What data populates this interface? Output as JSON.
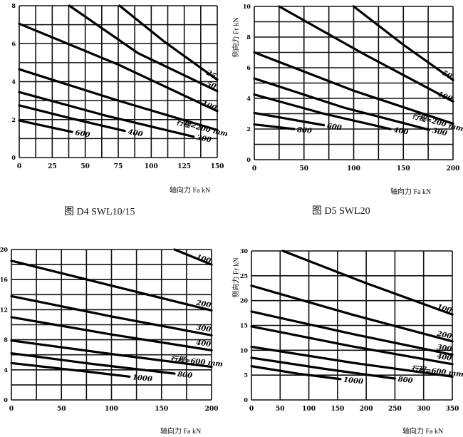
{
  "chart_data": [
    {
      "type": "line",
      "caption": "图 D4   SWL10/15",
      "xlabel": "轴向力 Fa   kN",
      "ylabel": "",
      "xlim": [
        0,
        150
      ],
      "ylim": [
        0,
        8
      ],
      "xticks": [
        0,
        25,
        50,
        75,
        100,
        125,
        150
      ],
      "yticks": [
        0,
        2,
        4,
        6,
        8
      ],
      "grid": {
        "x_step": 12.5,
        "y_step": 1
      },
      "series": [
        {
          "name": "25",
          "points": [
            [
              76,
              8
            ],
            [
              110,
              6.1
            ],
            [
              150,
              4.1
            ]
          ]
        },
        {
          "name": "50",
          "points": [
            [
              38,
              8
            ],
            [
              90,
              5.5
            ],
            [
              150,
              3.5
            ]
          ]
        },
        {
          "name": "100",
          "points": [
            [
              0,
              7.05
            ],
            [
              75,
              4.9
            ],
            [
              150,
              2.45
            ]
          ]
        },
        {
          "name": "行程=200 mm",
          "points": [
            [
              0,
              4.65
            ],
            [
              75,
              3.0
            ],
            [
              150,
              1.45
            ]
          ]
        },
        {
          "name": "300",
          "points": [
            [
              0,
              3.45
            ],
            [
              66,
              2.2
            ],
            [
              132,
              1.1
            ]
          ]
        },
        {
          "name": "400",
          "points": [
            [
              0,
              2.75
            ],
            [
              40,
              2.05
            ],
            [
              80,
              1.4
            ]
          ]
        },
        {
          "name": "600",
          "points": [
            [
              0,
              1.95
            ],
            [
              40,
              1.35
            ]
          ]
        }
      ]
    },
    {
      "type": "line",
      "caption": "图 D5   SWL20",
      "xlabel": "轴向力 Fa   kN",
      "ylabel": "侧向力 Fr   kN",
      "xlim": [
        0,
        200
      ],
      "ylim": [
        0,
        10
      ],
      "xticks": [
        0,
        50,
        100,
        150,
        200
      ],
      "yticks": [
        0,
        2,
        4,
        6,
        8,
        10
      ],
      "grid": {
        "x_step": 25,
        "y_step": 1
      },
      "series": [
        {
          "name": "50",
          "points": [
            [
              100,
              10
            ],
            [
              150,
              7.5
            ],
            [
              200,
              5.2
            ]
          ]
        },
        {
          "name": "100",
          "points": [
            [
              25,
              10
            ],
            [
              110,
              6.9
            ],
            [
              200,
              3.8
            ]
          ]
        },
        {
          "name": "行程=200 mm",
          "points": [
            [
              0,
              7
            ],
            [
              100,
              4.5
            ],
            [
              200,
              2.35
            ]
          ]
        },
        {
          "name": "300",
          "points": [
            [
              0,
              5.3
            ],
            [
              90,
              3.4
            ],
            [
              176,
              1.95
            ]
          ]
        },
        {
          "name": "400",
          "points": [
            [
              0,
              4.25
            ],
            [
              70,
              3.0
            ],
            [
              137,
              2.0
            ]
          ]
        },
        {
          "name": "600",
          "points": [
            [
              0,
              3.05
            ],
            [
              70,
              2.25
            ]
          ]
        },
        {
          "name": "800",
          "points": [
            [
              0,
              2.3
            ],
            [
              40,
              2.0
            ]
          ]
        }
      ]
    },
    {
      "type": "line",
      "caption": "",
      "xlabel": "轴向力 Fa   kN",
      "ylabel": "",
      "xlim": [
        0,
        200
      ],
      "ylim": [
        0,
        20
      ],
      "xticks": [
        0,
        50,
        100,
        150,
        200
      ],
      "yticks": [
        0,
        4,
        8,
        12,
        16,
        20
      ],
      "grid": {
        "x_step": 25,
        "y_step": 2
      },
      "series": [
        {
          "name": "100",
          "points": [
            [
              163,
              20
            ],
            [
              200,
              18
            ]
          ]
        },
        {
          "name": "200",
          "points": [
            [
              0,
              18.5
            ],
            [
              100,
              15.2
            ],
            [
              200,
              11.9
            ]
          ]
        },
        {
          "name": "300",
          "points": [
            [
              0,
              13.8
            ],
            [
              100,
              11.1
            ],
            [
              200,
              8.6
            ]
          ]
        },
        {
          "name": "400",
          "points": [
            [
              0,
              11
            ],
            [
              100,
              8.7
            ],
            [
              200,
              6.6
            ]
          ]
        },
        {
          "name": "行程=600 mm",
          "points": [
            [
              0,
              7.9
            ],
            [
              100,
              6.1
            ],
            [
              200,
              4.4
            ]
          ]
        },
        {
          "name": "800",
          "points": [
            [
              0,
              6.2
            ],
            [
              80,
              4.8
            ],
            [
              163,
              3.5
            ]
          ]
        },
        {
          "name": "1000",
          "points": [
            [
              0,
              4.9
            ],
            [
              60,
              4.0
            ],
            [
              118,
              3.1
            ]
          ]
        }
      ]
    },
    {
      "type": "line",
      "caption": "",
      "xlabel": "轴向力 Fa   kN",
      "ylabel": "侧向力 Fr   kN",
      "xlim": [
        0,
        350
      ],
      "ylim": [
        0,
        30
      ],
      "xticks": [
        0,
        50,
        100,
        150,
        200,
        250,
        300,
        350
      ],
      "yticks": [
        0,
        5,
        10,
        15,
        20,
        25,
        30
      ],
      "grid": {
        "x_step": 50,
        "y_step": 5
      },
      "series": [
        {
          "name": "100",
          "points": [
            [
              55,
              30
            ],
            [
              200,
              23.5
            ],
            [
              350,
              17.2
            ]
          ]
        },
        {
          "name": "200",
          "points": [
            [
              0,
              23
            ],
            [
              175,
              17.2
            ],
            [
              350,
              11.8
            ]
          ]
        },
        {
          "name": "300",
          "points": [
            [
              0,
              17.8
            ],
            [
              175,
              13.3
            ],
            [
              350,
              9.1
            ]
          ]
        },
        {
          "name": "400",
          "points": [
            [
              0,
              14.8
            ],
            [
              175,
              10.8
            ],
            [
              350,
              7.2
            ]
          ]
        },
        {
          "name": "行程=600 mm",
          "points": [
            [
              0,
              10.7
            ],
            [
              175,
              7.5
            ],
            [
              350,
              4.7
            ]
          ]
        },
        {
          "name": "800",
          "points": [
            [
              0,
              8.5
            ],
            [
              125,
              6.3
            ],
            [
              250,
              4.3
            ]
          ]
        },
        {
          "name": "1000",
          "points": [
            [
              0,
              6.8
            ],
            [
              80,
              5.3
            ],
            [
              155,
              4.2
            ]
          ]
        }
      ]
    }
  ]
}
